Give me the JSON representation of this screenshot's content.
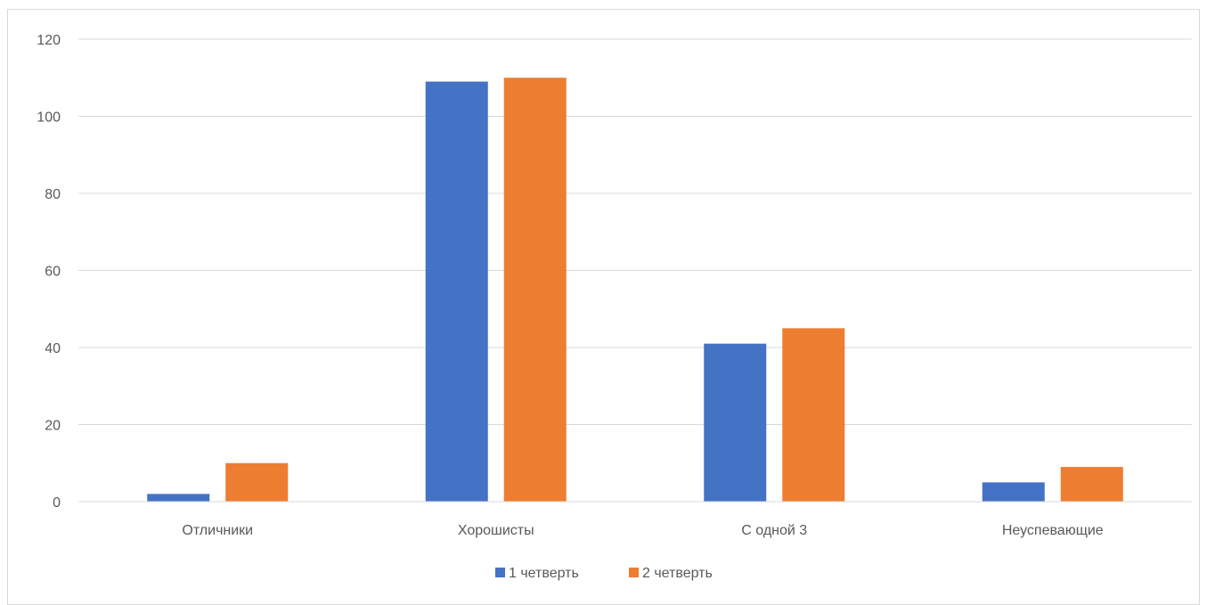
{
  "chart_data": {
    "type": "bar",
    "title": "",
    "xlabel": "",
    "ylabel": "",
    "categories": [
      "Отличники",
      "Хорошисты",
      "С одной 3",
      "Неуспевающие"
    ],
    "series": [
      {
        "name": "1 четверть",
        "values": [
          2,
          109,
          41,
          5
        ],
        "color": "#4472c4"
      },
      {
        "name": "2 четверть",
        "values": [
          10,
          110,
          45,
          9
        ],
        "color": "#ed7d31"
      }
    ],
    "ylim": [
      0,
      120
    ],
    "yticks": [
      0,
      20,
      40,
      60,
      80,
      100,
      120
    ],
    "grid": true,
    "legend_position": "bottom"
  }
}
